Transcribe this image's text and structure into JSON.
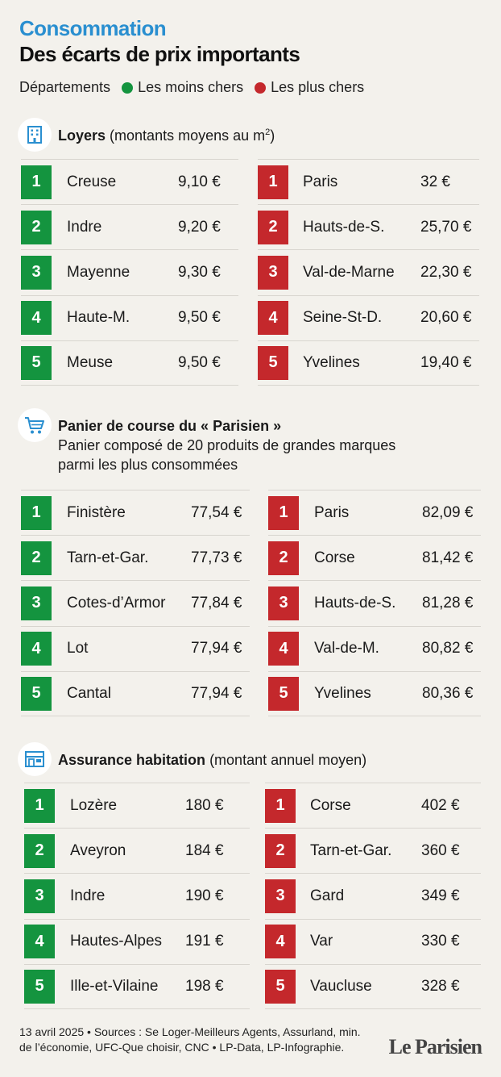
{
  "header": {
    "kicker": "Consommation",
    "title": "Des écarts de prix importants"
  },
  "legend": {
    "label": "Départements",
    "cheap_label": "Les moins chers",
    "expensive_label": "Les plus chers",
    "cheap_color": "#14943f",
    "expensive_color": "#c4282c"
  },
  "sections": [
    {
      "icon": "building-icon",
      "title": "Loyers",
      "subtitle_pre": "(montants moyens au m",
      "subtitle_sup": "2",
      "subtitle_post": ")",
      "cheapest": [
        {
          "rank": "1",
          "name": "Creuse",
          "value": "9,10 €"
        },
        {
          "rank": "2",
          "name": "Indre",
          "value": "9,20 €"
        },
        {
          "rank": "3",
          "name": "Mayenne",
          "value": "9,30 €"
        },
        {
          "rank": "4",
          "name": "Haute-M.",
          "value": "9,50 €"
        },
        {
          "rank": "5",
          "name": "Meuse",
          "value": "9,50 €"
        }
      ],
      "most_expensive": [
        {
          "rank": "1",
          "name": "Paris",
          "value": "32 €"
        },
        {
          "rank": "2",
          "name": "Hauts-de-S.",
          "value": "25,70 €"
        },
        {
          "rank": "3",
          "name": "Val-de-Marne",
          "value": "22,30 €"
        },
        {
          "rank": "4",
          "name": "Seine-St-D.",
          "value": "20,60 €"
        },
        {
          "rank": "5",
          "name": "Yvelines",
          "value": "19,40 €"
        }
      ]
    },
    {
      "icon": "shopping-cart-icon",
      "title": "Panier de course du « Parisien »",
      "desc_line1": "Panier composé de 20 produits de grandes marques",
      "desc_line2": "parmi les plus consommées",
      "cheapest": [
        {
          "rank": "1",
          "name": "Finistère",
          "value": "77,54 €"
        },
        {
          "rank": "2",
          "name": "Tarn-et-Gar.",
          "value": "77,73 €"
        },
        {
          "rank": "3",
          "name": "Cotes-d’Armor",
          "value": "77,84 €"
        },
        {
          "rank": "4",
          "name": "Lot",
          "value": "77,94 €"
        },
        {
          "rank": "5",
          "name": "Cantal",
          "value": "77,94 €"
        }
      ],
      "most_expensive": [
        {
          "rank": "1",
          "name": "Paris",
          "value": "82,09 €"
        },
        {
          "rank": "2",
          "name": "Corse",
          "value": "81,42 €"
        },
        {
          "rank": "3",
          "name": "Hauts-de-S.",
          "value": "81,28 €"
        },
        {
          "rank": "4",
          "name": "Val-de-M.",
          "value": "80,82 €"
        },
        {
          "rank": "5",
          "name": "Yvelines",
          "value": "80,36 €"
        }
      ]
    },
    {
      "icon": "house-icon",
      "title": "Assurance habitation",
      "subtitle": "(montant annuel moyen)",
      "cheapest": [
        {
          "rank": "1",
          "name": "Lozère",
          "value": "180 €"
        },
        {
          "rank": "2",
          "name": "Aveyron",
          "value": "184 €"
        },
        {
          "rank": "3",
          "name": "Indre",
          "value": "190 €"
        },
        {
          "rank": "4",
          "name": "Hautes-Alpes",
          "value": "191 €"
        },
        {
          "rank": "5",
          "name": "Ille-et-Vilaine",
          "value": "198 €"
        }
      ],
      "most_expensive": [
        {
          "rank": "1",
          "name": "Corse",
          "value": "402 €"
        },
        {
          "rank": "2",
          "name": "Tarn-et-Gar.",
          "value": "360 €"
        },
        {
          "rank": "3",
          "name": "Gard",
          "value": "349 €"
        },
        {
          "rank": "4",
          "name": "Var",
          "value": "330 €"
        },
        {
          "rank": "5",
          "name": "Vaucluse",
          "value": "328 €"
        }
      ]
    }
  ],
  "footer": {
    "line1": "13 avril 2025 • Sources : Se Loger-Meilleurs Agents, Assurland, min.",
    "line2": "de l’économie, UFC-Que choisir, CNC • LP-Data, LP-Infographie.",
    "logo": "Le Parisien"
  }
}
